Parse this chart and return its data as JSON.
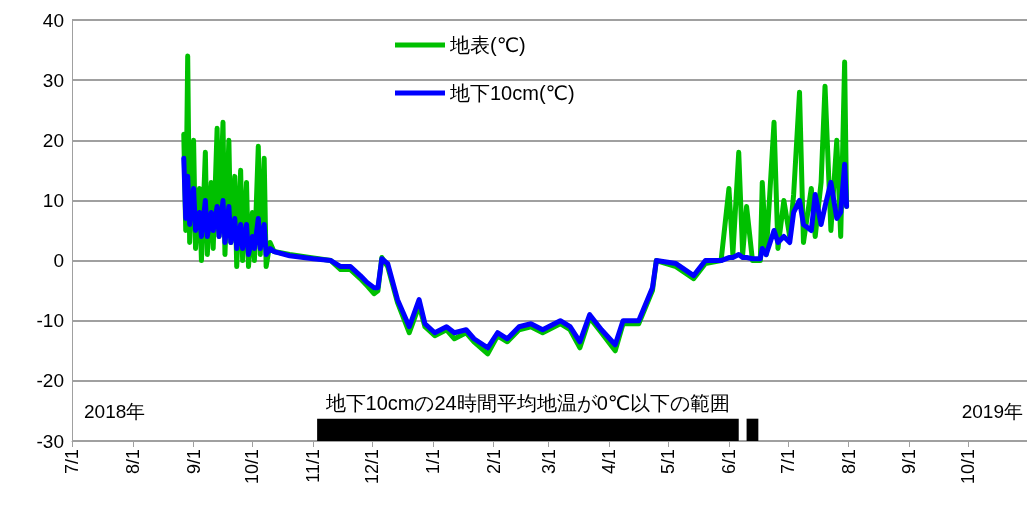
{
  "chart_data": {
    "type": "line",
    "x": [
      "2018-08-27",
      "2018-08-28",
      "2018-08-29",
      "2018-08-30",
      "2018-09-01",
      "2018-09-02",
      "2018-09-04",
      "2018-09-05",
      "2018-09-07",
      "2018-09-08",
      "2018-09-10",
      "2018-09-11",
      "2018-09-13",
      "2018-09-14",
      "2018-09-16",
      "2018-09-17",
      "2018-09-19",
      "2018-09-20",
      "2018-09-22",
      "2018-09-23",
      "2018-09-25",
      "2018-09-26",
      "2018-09-28",
      "2018-09-29",
      "2018-10-01",
      "2018-10-02",
      "2018-10-04",
      "2018-10-05",
      "2018-10-07",
      "2018-10-08",
      "2018-10-10",
      "2018-10-12",
      "2018-10-20",
      "2018-11-01",
      "2018-11-10",
      "2018-11-15",
      "2018-11-20",
      "2018-11-25",
      "2018-11-28",
      "2018-12-02",
      "2018-12-04",
      "2018-12-06",
      "2018-12-09",
      "2018-12-14",
      "2018-12-20",
      "2018-12-25",
      "2018-12-28",
      "2019-01-02",
      "2019-01-08",
      "2019-01-12",
      "2019-01-18",
      "2019-01-22",
      "2019-01-29",
      "2019-02-03",
      "2019-02-08",
      "2019-02-14",
      "2019-02-20",
      "2019-02-26",
      "2019-03-07",
      "2019-03-12",
      "2019-03-17",
      "2019-03-22",
      "2019-03-28",
      "2019-04-04",
      "2019-04-08",
      "2019-04-16",
      "2019-04-23",
      "2019-04-25",
      "2019-05-05",
      "2019-05-14",
      "2019-05-20",
      "2019-05-28",
      "2019-06-01",
      "2019-06-03",
      "2019-06-06",
      "2019-06-08",
      "2019-06-10",
      "2019-06-13",
      "2019-06-17",
      "2019-06-18",
      "2019-06-20",
      "2019-06-24",
      "2019-06-26",
      "2019-06-29",
      "2019-07-02",
      "2019-07-04",
      "2019-07-07",
      "2019-07-09",
      "2019-07-13",
      "2019-07-15",
      "2019-07-18",
      "2019-07-20",
      "2019-07-23",
      "2019-07-26",
      "2019-07-28",
      "2019-07-30",
      "2019-07-31"
    ],
    "series": [
      {
        "name": "地表(℃)",
        "color": "#00c000",
        "values": [
          21,
          5,
          34,
          3,
          20,
          2,
          12,
          0,
          18,
          1,
          13,
          2,
          22,
          4,
          23,
          1,
          20,
          3,
          14,
          -1,
          15,
          0,
          13,
          -1,
          8,
          0,
          19,
          1,
          17,
          -1,
          3,
          1.5,
          1,
          null,
          0,
          -1.5,
          -1.5,
          -3,
          -4,
          -5.5,
          -5,
          0.5,
          -1,
          -7,
          -12,
          -7.5,
          -11,
          -12.5,
          -11.5,
          -13,
          -12,
          -13.5,
          -15.5,
          -12.5,
          -13.5,
          -11.5,
          -11,
          -12,
          -10.5,
          -11.5,
          -14.5,
          -9.5,
          -12,
          -15,
          -10.5,
          -10.5,
          -5,
          0,
          -1,
          -3,
          -0.5,
          0,
          12,
          1,
          18,
          1,
          9,
          0,
          0,
          13,
          1,
          23,
          2,
          10,
          4,
          11,
          28,
          3,
          12,
          4,
          13,
          29,
          5,
          20,
          4,
          33,
          9
        ]
      },
      {
        "name": "地下10cm(℃)",
        "color": "#0000ff",
        "values": [
          17,
          7,
          14,
          6,
          12,
          5,
          8,
          4,
          10,
          4,
          8,
          5,
          9,
          4,
          10,
          3,
          9,
          3,
          7,
          2,
          6,
          2,
          6,
          1,
          4,
          2,
          7,
          2,
          6,
          1,
          2,
          1.5,
          0.8,
          0.3,
          0,
          -1,
          -1,
          -2.5,
          -3.5,
          -4.5,
          -4.5,
          0.3,
          -0.5,
          -6.5,
          -11,
          -6.5,
          -10.5,
          -12,
          -11,
          -12,
          -11.5,
          -13,
          -14.5,
          -12,
          -13,
          -11,
          -10.5,
          -11.5,
          -10,
          -11,
          -13.5,
          -9,
          -11.5,
          -14,
          -10,
          -10,
          -4.5,
          0,
          -0.5,
          -2.5,
          0,
          0,
          0.5,
          0.5,
          1,
          0.5,
          0.5,
          0.3,
          0.3,
          2,
          1,
          5,
          3,
          4,
          3,
          8,
          10,
          6,
          5,
          11,
          6,
          9,
          13,
          7,
          8,
          16,
          9
        ]
      }
    ],
    "xlim": [
      "2018-07-01",
      "2019-10-31"
    ],
    "xticks": [
      {
        "value": "2018-07-01",
        "label": "7/1"
      },
      {
        "value": "2018-08-01",
        "label": "8/1"
      },
      {
        "value": "2018-09-01",
        "label": "9/1"
      },
      {
        "value": "2018-10-01",
        "label": "10/1"
      },
      {
        "value": "2018-11-01",
        "label": "11/1"
      },
      {
        "value": "2018-12-01",
        "label": "12/1"
      },
      {
        "value": "2019-01-01",
        "label": "1/1"
      },
      {
        "value": "2019-02-01",
        "label": "2/1"
      },
      {
        "value": "2019-03-01",
        "label": "3/1"
      },
      {
        "value": "2019-04-01",
        "label": "4/1"
      },
      {
        "value": "2019-05-01",
        "label": "5/1"
      },
      {
        "value": "2019-06-01",
        "label": "6/1"
      },
      {
        "value": "2019-07-01",
        "label": "7/1"
      },
      {
        "value": "2019-08-01",
        "label": "8/1"
      },
      {
        "value": "2019-09-01",
        "label": "9/1"
      },
      {
        "value": "2019-10-01",
        "label": "10/1"
      }
    ],
    "ylim": [
      -30,
      40
    ],
    "yticks": [
      -30,
      -20,
      -10,
      0,
      10,
      20,
      30,
      40
    ],
    "bands": [
      {
        "axis": "x",
        "from": "2018-11-03",
        "to": "2019-06-06",
        "label": "地下10cmの24時間平均地温が0℃以下の範囲",
        "color": "#000000"
      },
      {
        "axis": "x",
        "from": "2019-06-10",
        "to": "2019-06-16",
        "color": "#000000"
      }
    ],
    "annotations": [
      "2018年",
      "2019年"
    ],
    "grid": "y",
    "legend": "top",
    "marker": "none",
    "line_style": "solid"
  }
}
